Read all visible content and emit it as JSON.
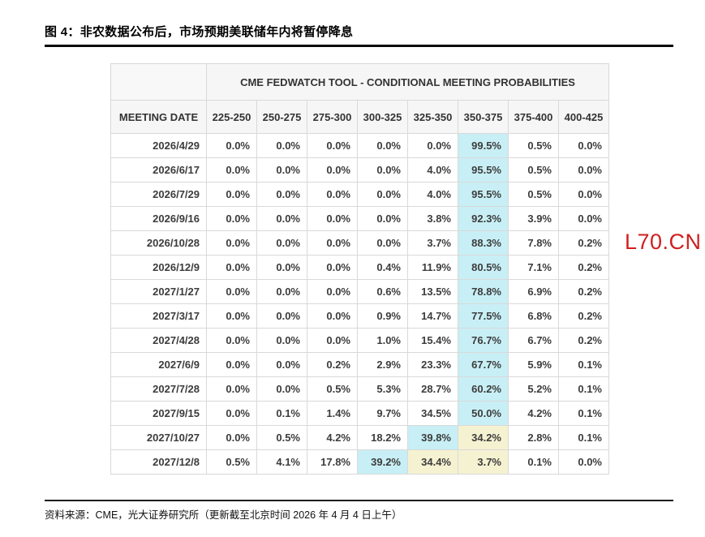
{
  "header": {
    "figure_title": "图 4：非农数据公布后，市场预期美联储年内将暂停降息"
  },
  "watermark": {
    "text": "L70.CN",
    "color": "#d01f1f"
  },
  "footer": {
    "source_note": "资料来源：CME，光大证券研究所（更新截至北京时间 2026 年 4 月 4 日上午）"
  },
  "chart_data": {
    "type": "table",
    "title": "CME FEDWATCH TOOL - CONDITIONAL MEETING PROBABILITIES",
    "columns": [
      "MEETING DATE",
      "225-250",
      "250-275",
      "275-300",
      "300-325",
      "325-350",
      "350-375",
      "375-400",
      "400-425"
    ],
    "highlight_colors": {
      "c": "#c8eff5",
      "y": "#f5f2d2"
    },
    "rows": [
      {
        "date": "2026/4/29",
        "values": [
          "0.0%",
          "0.0%",
          "0.0%",
          "0.0%",
          "0.0%",
          "99.5%",
          "0.5%",
          "0.0%"
        ],
        "highlights": [
          "",
          "",
          "",
          "",
          "",
          "c",
          "",
          ""
        ]
      },
      {
        "date": "2026/6/17",
        "values": [
          "0.0%",
          "0.0%",
          "0.0%",
          "0.0%",
          "4.0%",
          "95.5%",
          "0.5%",
          "0.0%"
        ],
        "highlights": [
          "",
          "",
          "",
          "",
          "",
          "c",
          "",
          ""
        ]
      },
      {
        "date": "2026/7/29",
        "values": [
          "0.0%",
          "0.0%",
          "0.0%",
          "0.0%",
          "4.0%",
          "95.5%",
          "0.5%",
          "0.0%"
        ],
        "highlights": [
          "",
          "",
          "",
          "",
          "",
          "c",
          "",
          ""
        ]
      },
      {
        "date": "2026/9/16",
        "values": [
          "0.0%",
          "0.0%",
          "0.0%",
          "0.0%",
          "3.8%",
          "92.3%",
          "3.9%",
          "0.0%"
        ],
        "highlights": [
          "",
          "",
          "",
          "",
          "",
          "c",
          "",
          ""
        ]
      },
      {
        "date": "2026/10/28",
        "values": [
          "0.0%",
          "0.0%",
          "0.0%",
          "0.0%",
          "3.7%",
          "88.3%",
          "7.8%",
          "0.2%"
        ],
        "highlights": [
          "",
          "",
          "",
          "",
          "",
          "c",
          "",
          ""
        ]
      },
      {
        "date": "2026/12/9",
        "values": [
          "0.0%",
          "0.0%",
          "0.0%",
          "0.4%",
          "11.9%",
          "80.5%",
          "7.1%",
          "0.2%"
        ],
        "highlights": [
          "",
          "",
          "",
          "",
          "",
          "c",
          "",
          ""
        ]
      },
      {
        "date": "2027/1/27",
        "values": [
          "0.0%",
          "0.0%",
          "0.0%",
          "0.6%",
          "13.5%",
          "78.8%",
          "6.9%",
          "0.2%"
        ],
        "highlights": [
          "",
          "",
          "",
          "",
          "",
          "c",
          "",
          ""
        ]
      },
      {
        "date": "2027/3/17",
        "values": [
          "0.0%",
          "0.0%",
          "0.0%",
          "0.9%",
          "14.7%",
          "77.5%",
          "6.8%",
          "0.2%"
        ],
        "highlights": [
          "",
          "",
          "",
          "",
          "",
          "c",
          "",
          ""
        ]
      },
      {
        "date": "2027/4/28",
        "values": [
          "0.0%",
          "0.0%",
          "0.0%",
          "1.0%",
          "15.4%",
          "76.7%",
          "6.7%",
          "0.2%"
        ],
        "highlights": [
          "",
          "",
          "",
          "",
          "",
          "c",
          "",
          ""
        ]
      },
      {
        "date": "2027/6/9",
        "values": [
          "0.0%",
          "0.0%",
          "0.2%",
          "2.9%",
          "23.3%",
          "67.7%",
          "5.9%",
          "0.1%"
        ],
        "highlights": [
          "",
          "",
          "",
          "",
          "",
          "c",
          "",
          ""
        ]
      },
      {
        "date": "2027/7/28",
        "values": [
          "0.0%",
          "0.0%",
          "0.5%",
          "5.3%",
          "28.7%",
          "60.2%",
          "5.2%",
          "0.1%"
        ],
        "highlights": [
          "",
          "",
          "",
          "",
          "",
          "c",
          "",
          ""
        ]
      },
      {
        "date": "2027/9/15",
        "values": [
          "0.0%",
          "0.1%",
          "1.4%",
          "9.7%",
          "34.5%",
          "50.0%",
          "4.2%",
          "0.1%"
        ],
        "highlights": [
          "",
          "",
          "",
          "",
          "",
          "c",
          "",
          ""
        ]
      },
      {
        "date": "2027/10/27",
        "values": [
          "0.0%",
          "0.5%",
          "4.2%",
          "18.2%",
          "39.8%",
          "34.2%",
          "2.8%",
          "0.1%"
        ],
        "highlights": [
          "",
          "",
          "",
          "",
          "c",
          "y",
          "",
          ""
        ]
      },
      {
        "date": "2027/12/8",
        "values": [
          "0.5%",
          "4.1%",
          "17.8%",
          "39.2%",
          "34.4%",
          "3.7%",
          "0.1%",
          "0.0%"
        ],
        "highlights": [
          "",
          "",
          "",
          "c",
          "y",
          "y",
          "",
          ""
        ]
      }
    ]
  }
}
